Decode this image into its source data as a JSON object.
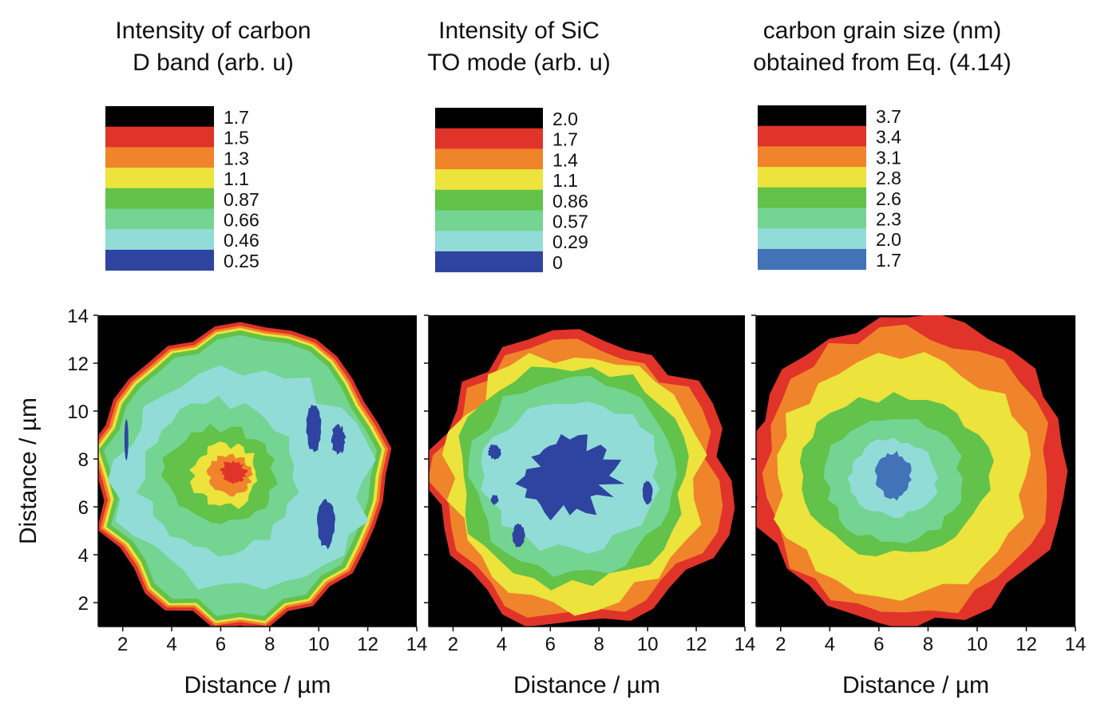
{
  "chart_data": [
    {
      "type": "heatmap",
      "subtype": "filled-contour",
      "title": [
        "Intensity of carbon",
        "D band (arb. u)"
      ],
      "xlabel": "Distance / µm",
      "ylabel": "Distance / µm",
      "xlim": [
        1,
        14
      ],
      "ylim": [
        1,
        14
      ],
      "xticks": [
        "2",
        "4",
        "6",
        "8",
        "10",
        "12",
        "14"
      ],
      "yticks": [
        "2",
        "4",
        "6",
        "8",
        "10",
        "12",
        "14"
      ],
      "colorbar": {
        "labels": [
          "1.7",
          "1.5",
          "1.3",
          "1.1",
          "0.87",
          "0.66",
          "0.46",
          "0.25"
        ],
        "colors": [
          "#000000",
          "#e0332a",
          "#f0842a",
          "#ece33c",
          "#62c24a",
          "#74d492",
          "#92dcd8",
          "#2e44a0"
        ]
      },
      "grid": false
    },
    {
      "type": "heatmap",
      "subtype": "filled-contour",
      "title": [
        "Intensity of SiC",
        "TO mode (arb. u)"
      ],
      "xlabel": "Distance / µm",
      "ylabel": "",
      "xlim": [
        1,
        14
      ],
      "ylim": [
        1,
        14
      ],
      "xticks": [
        "2",
        "4",
        "6",
        "8",
        "10",
        "12",
        "14"
      ],
      "yticks": [],
      "colorbar": {
        "labels": [
          "2.0",
          "1.7",
          "1.4",
          "1.1",
          "0.86",
          "0.57",
          "0.29",
          "0"
        ],
        "colors": [
          "#000000",
          "#e0332a",
          "#f0842a",
          "#ece33c",
          "#62c24a",
          "#74d492",
          "#92dcd8",
          "#2e44a0"
        ]
      },
      "grid": false
    },
    {
      "type": "heatmap",
      "subtype": "filled-contour",
      "title": [
        "carbon grain size (nm)",
        "obtained from Eq. (4.14)"
      ],
      "xlabel": "Distance / µm",
      "ylabel": "",
      "xlim": [
        1,
        14
      ],
      "ylim": [
        1,
        14
      ],
      "xticks": [
        "2",
        "4",
        "6",
        "8",
        "10",
        "12",
        "14"
      ],
      "yticks": [],
      "colorbar": {
        "labels": [
          "3.7",
          "3.4",
          "3.1",
          "2.8",
          "2.6",
          "2.3",
          "2.0",
          "1.7"
        ],
        "colors": [
          "#000000",
          "#e0332a",
          "#f0842a",
          "#ece33c",
          "#62c24a",
          "#74d492",
          "#92dcd8",
          "#4272b8"
        ]
      },
      "grid": false
    }
  ]
}
